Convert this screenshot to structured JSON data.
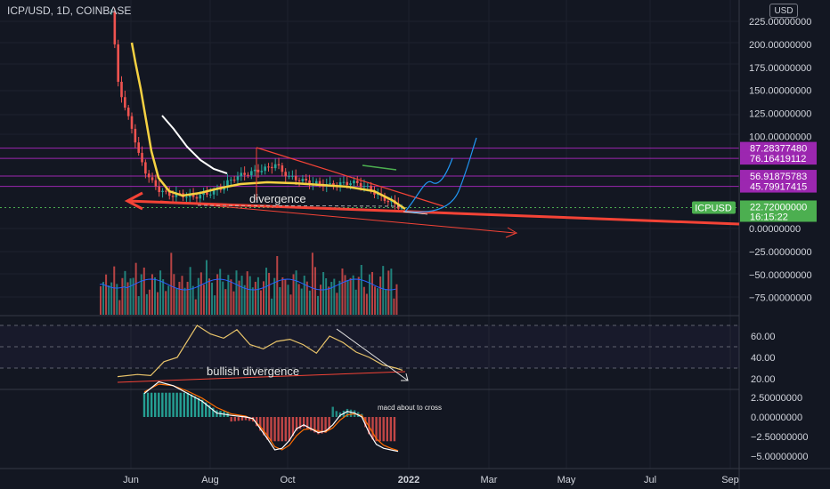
{
  "header": {
    "symbol_title": "ICP/USD, 1D, COINBASE",
    "currency_button": "USD"
  },
  "colors": {
    "background": "#131722",
    "up": "#26a69a",
    "down": "#ef5350",
    "purple": "#9c27b0",
    "trend_red": "#f44336",
    "ma_yellow": "#f5d142",
    "ma_white": "#ffffff",
    "projection_blue": "#2196f3",
    "green_tag": "#4caf50",
    "rsi_line": "#e9c46a",
    "macd_line": "#ffffff",
    "signal_line": "#ff6d00"
  },
  "price_axis": {
    "ticks": [
      "225.00000000",
      "200.00000000",
      "175.00000000",
      "150.00000000",
      "125.00000000",
      "100.00000000",
      "0.00000000",
      "−25.00000000",
      "−50.00000000",
      "−75.00000000"
    ]
  },
  "price_tags": [
    {
      "label": "87.28377480",
      "value": 87.28,
      "color": "#9c27b0"
    },
    {
      "label": "76.16419112",
      "value": 76.16,
      "color": "#9c27b0"
    },
    {
      "label": "56.91875783",
      "value": 56.92,
      "color": "#9c27b0"
    },
    {
      "label": "45.79917415",
      "value": 45.8,
      "color": "#9c27b0"
    },
    {
      "label": "22.72000000",
      "value": 22.72,
      "color": "#4caf50"
    }
  ],
  "last_price": {
    "symbol_label": "ICPUSD",
    "countdown": "16:15:22"
  },
  "time_axis": {
    "labels": [
      "Jun",
      "Aug",
      "Oct",
      "2022",
      "Mar",
      "May",
      "Jul",
      "Sep"
    ]
  },
  "rsi_axis": {
    "ticks": [
      "60.00",
      "40.00",
      "20.00"
    ]
  },
  "macd_axis": {
    "ticks": [
      "2.50000000",
      "0.00000000",
      "−2.50000000",
      "−5.00000000"
    ]
  },
  "annotations": {
    "divergence": "divergence",
    "bullish_divergence": "bullish divergence",
    "macd_note": "macd about to cross"
  },
  "chart_data": {
    "type": "candlestick",
    "title": "ICP/USD, 1D, COINBASE",
    "ylim": [
      -90,
      235
    ],
    "x_labels": [
      "Jun",
      "Aug",
      "Oct",
      "2022",
      "Mar",
      "May",
      "Jul",
      "Sep"
    ],
    "horizontal_levels": [
      87.2837748,
      76.16419112,
      56.91875783,
      45.79917415
    ],
    "last_price": 22.72,
    "price_series": [
      [
        0,
        235
      ],
      [
        2,
        160
      ],
      [
        4,
        130
      ],
      [
        6,
        110
      ],
      [
        8,
        80
      ],
      [
        10,
        62
      ],
      [
        12,
        50
      ],
      [
        14,
        42
      ],
      [
        16,
        38
      ],
      [
        18,
        36
      ],
      [
        20,
        37
      ],
      [
        22,
        35
      ],
      [
        24,
        34
      ],
      [
        26,
        36
      ],
      [
        28,
        38
      ],
      [
        30,
        40
      ],
      [
        32,
        44
      ],
      [
        34,
        50
      ],
      [
        36,
        55
      ],
      [
        38,
        58
      ],
      [
        40,
        60
      ],
      [
        42,
        62
      ],
      [
        44,
        64
      ],
      [
        46,
        66
      ],
      [
        48,
        70
      ],
      [
        50,
        62
      ],
      [
        52,
        56
      ],
      [
        54,
        54
      ],
      [
        56,
        52
      ],
      [
        58,
        50
      ],
      [
        60,
        49
      ],
      [
        62,
        48
      ],
      [
        64,
        47
      ],
      [
        66,
        48
      ],
      [
        68,
        49
      ],
      [
        70,
        50
      ],
      [
        72,
        49
      ],
      [
        74,
        46
      ],
      [
        76,
        42
      ],
      [
        78,
        36
      ],
      [
        80,
        32
      ],
      [
        82,
        28
      ],
      [
        84,
        24
      ],
      [
        86,
        22.72
      ]
    ],
    "rsi_ticks": [
      60,
      40,
      20
    ],
    "rsi_series": [
      [
        0,
        22
      ],
      [
        6,
        24
      ],
      [
        10,
        23
      ],
      [
        14,
        36
      ],
      [
        18,
        40
      ],
      [
        20,
        50
      ],
      [
        24,
        70
      ],
      [
        28,
        62
      ],
      [
        32,
        58
      ],
      [
        36,
        66
      ],
      [
        40,
        52
      ],
      [
        44,
        48
      ],
      [
        48,
        55
      ],
      [
        52,
        57
      ],
      [
        56,
        52
      ],
      [
        60,
        44
      ],
      [
        64,
        60
      ],
      [
        68,
        54
      ],
      [
        72,
        45
      ],
      [
        76,
        40
      ],
      [
        80,
        33
      ],
      [
        84,
        30
      ],
      [
        86,
        28
      ]
    ],
    "macd_ticks": [
      2.5,
      0,
      -2.5,
      -5
    ],
    "macd_series": [
      [
        0,
        3.0
      ],
      [
        4,
        4.5
      ],
      [
        8,
        4.0
      ],
      [
        12,
        3.0
      ],
      [
        16,
        2.0
      ],
      [
        20,
        0.5
      ],
      [
        24,
        0.2
      ],
      [
        28,
        0.0
      ],
      [
        30,
        -0.2
      ],
      [
        32,
        -1.5
      ],
      [
        34,
        -2.8
      ],
      [
        36,
        -4.2
      ],
      [
        38,
        -4.0
      ],
      [
        40,
        -3.0
      ],
      [
        42,
        -1.5
      ],
      [
        44,
        -1.0
      ],
      [
        46,
        -1.5
      ],
      [
        48,
        -2.0
      ],
      [
        50,
        -1.8
      ],
      [
        52,
        -1.0
      ],
      [
        54,
        0.2
      ],
      [
        56,
        0.7
      ],
      [
        58,
        0.5
      ],
      [
        60,
        0.0
      ],
      [
        62,
        -2.0
      ],
      [
        64,
        -3.5
      ],
      [
        66,
        -4.0
      ],
      [
        68,
        -4.2
      ],
      [
        70,
        -4.4
      ]
    ],
    "signal_series": [
      [
        0,
        3.2
      ],
      [
        4,
        4.2
      ],
      [
        8,
        4.0
      ],
      [
        12,
        3.3
      ],
      [
        16,
        2.4
      ],
      [
        20,
        1.2
      ],
      [
        24,
        0.4
      ],
      [
        28,
        0.1
      ],
      [
        30,
        -0.3
      ],
      [
        32,
        -1.2
      ],
      [
        34,
        -2.4
      ],
      [
        36,
        -3.8
      ],
      [
        38,
        -4.2
      ],
      [
        40,
        -3.6
      ],
      [
        42,
        -2.4
      ],
      [
        44,
        -1.6
      ],
      [
        46,
        -1.5
      ],
      [
        48,
        -1.8
      ],
      [
        50,
        -1.9
      ],
      [
        52,
        -1.4
      ],
      [
        54,
        -0.4
      ],
      [
        56,
        0.3
      ],
      [
        58,
        0.4
      ],
      [
        60,
        0.2
      ],
      [
        62,
        -1.2
      ],
      [
        64,
        -2.8
      ],
      [
        66,
        -3.6
      ],
      [
        68,
        -4.0
      ],
      [
        70,
        -4.3
      ]
    ]
  }
}
